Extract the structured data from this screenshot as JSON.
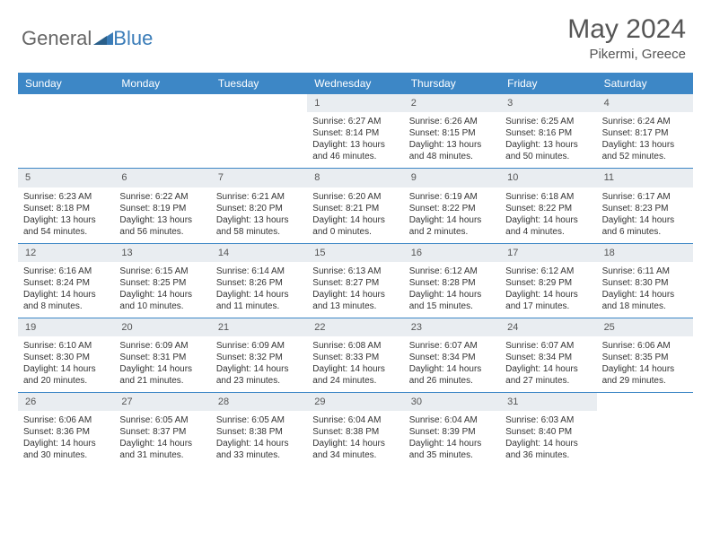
{
  "logo": {
    "part1": "General",
    "part2": "Blue"
  },
  "title": "May 2024",
  "subtitle": "Pikermi, Greece",
  "day_names": [
    "Sunday",
    "Monday",
    "Tuesday",
    "Wednesday",
    "Thursday",
    "Friday",
    "Saturday"
  ],
  "colors": {
    "header_bg": "#3d87c6",
    "header_text": "#ffffff",
    "daynum_bg": "#e9edf1",
    "week_divider": "#3d87c6",
    "logo_blue": "#3a7cb8",
    "text": "#333333"
  },
  "weeks": [
    [
      null,
      null,
      null,
      {
        "n": "1",
        "sr": "Sunrise: 6:27 AM",
        "ss": "Sunset: 8:14 PM",
        "dl": "Daylight: 13 hours and 46 minutes."
      },
      {
        "n": "2",
        "sr": "Sunrise: 6:26 AM",
        "ss": "Sunset: 8:15 PM",
        "dl": "Daylight: 13 hours and 48 minutes."
      },
      {
        "n": "3",
        "sr": "Sunrise: 6:25 AM",
        "ss": "Sunset: 8:16 PM",
        "dl": "Daylight: 13 hours and 50 minutes."
      },
      {
        "n": "4",
        "sr": "Sunrise: 6:24 AM",
        "ss": "Sunset: 8:17 PM",
        "dl": "Daylight: 13 hours and 52 minutes."
      }
    ],
    [
      {
        "n": "5",
        "sr": "Sunrise: 6:23 AM",
        "ss": "Sunset: 8:18 PM",
        "dl": "Daylight: 13 hours and 54 minutes."
      },
      {
        "n": "6",
        "sr": "Sunrise: 6:22 AM",
        "ss": "Sunset: 8:19 PM",
        "dl": "Daylight: 13 hours and 56 minutes."
      },
      {
        "n": "7",
        "sr": "Sunrise: 6:21 AM",
        "ss": "Sunset: 8:20 PM",
        "dl": "Daylight: 13 hours and 58 minutes."
      },
      {
        "n": "8",
        "sr": "Sunrise: 6:20 AM",
        "ss": "Sunset: 8:21 PM",
        "dl": "Daylight: 14 hours and 0 minutes."
      },
      {
        "n": "9",
        "sr": "Sunrise: 6:19 AM",
        "ss": "Sunset: 8:22 PM",
        "dl": "Daylight: 14 hours and 2 minutes."
      },
      {
        "n": "10",
        "sr": "Sunrise: 6:18 AM",
        "ss": "Sunset: 8:22 PM",
        "dl": "Daylight: 14 hours and 4 minutes."
      },
      {
        "n": "11",
        "sr": "Sunrise: 6:17 AM",
        "ss": "Sunset: 8:23 PM",
        "dl": "Daylight: 14 hours and 6 minutes."
      }
    ],
    [
      {
        "n": "12",
        "sr": "Sunrise: 6:16 AM",
        "ss": "Sunset: 8:24 PM",
        "dl": "Daylight: 14 hours and 8 minutes."
      },
      {
        "n": "13",
        "sr": "Sunrise: 6:15 AM",
        "ss": "Sunset: 8:25 PM",
        "dl": "Daylight: 14 hours and 10 minutes."
      },
      {
        "n": "14",
        "sr": "Sunrise: 6:14 AM",
        "ss": "Sunset: 8:26 PM",
        "dl": "Daylight: 14 hours and 11 minutes."
      },
      {
        "n": "15",
        "sr": "Sunrise: 6:13 AM",
        "ss": "Sunset: 8:27 PM",
        "dl": "Daylight: 14 hours and 13 minutes."
      },
      {
        "n": "16",
        "sr": "Sunrise: 6:12 AM",
        "ss": "Sunset: 8:28 PM",
        "dl": "Daylight: 14 hours and 15 minutes."
      },
      {
        "n": "17",
        "sr": "Sunrise: 6:12 AM",
        "ss": "Sunset: 8:29 PM",
        "dl": "Daylight: 14 hours and 17 minutes."
      },
      {
        "n": "18",
        "sr": "Sunrise: 6:11 AM",
        "ss": "Sunset: 8:30 PM",
        "dl": "Daylight: 14 hours and 18 minutes."
      }
    ],
    [
      {
        "n": "19",
        "sr": "Sunrise: 6:10 AM",
        "ss": "Sunset: 8:30 PM",
        "dl": "Daylight: 14 hours and 20 minutes."
      },
      {
        "n": "20",
        "sr": "Sunrise: 6:09 AM",
        "ss": "Sunset: 8:31 PM",
        "dl": "Daylight: 14 hours and 21 minutes."
      },
      {
        "n": "21",
        "sr": "Sunrise: 6:09 AM",
        "ss": "Sunset: 8:32 PM",
        "dl": "Daylight: 14 hours and 23 minutes."
      },
      {
        "n": "22",
        "sr": "Sunrise: 6:08 AM",
        "ss": "Sunset: 8:33 PM",
        "dl": "Daylight: 14 hours and 24 minutes."
      },
      {
        "n": "23",
        "sr": "Sunrise: 6:07 AM",
        "ss": "Sunset: 8:34 PM",
        "dl": "Daylight: 14 hours and 26 minutes."
      },
      {
        "n": "24",
        "sr": "Sunrise: 6:07 AM",
        "ss": "Sunset: 8:34 PM",
        "dl": "Daylight: 14 hours and 27 minutes."
      },
      {
        "n": "25",
        "sr": "Sunrise: 6:06 AM",
        "ss": "Sunset: 8:35 PM",
        "dl": "Daylight: 14 hours and 29 minutes."
      }
    ],
    [
      {
        "n": "26",
        "sr": "Sunrise: 6:06 AM",
        "ss": "Sunset: 8:36 PM",
        "dl": "Daylight: 14 hours and 30 minutes."
      },
      {
        "n": "27",
        "sr": "Sunrise: 6:05 AM",
        "ss": "Sunset: 8:37 PM",
        "dl": "Daylight: 14 hours and 31 minutes."
      },
      {
        "n": "28",
        "sr": "Sunrise: 6:05 AM",
        "ss": "Sunset: 8:38 PM",
        "dl": "Daylight: 14 hours and 33 minutes."
      },
      {
        "n": "29",
        "sr": "Sunrise: 6:04 AM",
        "ss": "Sunset: 8:38 PM",
        "dl": "Daylight: 14 hours and 34 minutes."
      },
      {
        "n": "30",
        "sr": "Sunrise: 6:04 AM",
        "ss": "Sunset: 8:39 PM",
        "dl": "Daylight: 14 hours and 35 minutes."
      },
      {
        "n": "31",
        "sr": "Sunrise: 6:03 AM",
        "ss": "Sunset: 8:40 PM",
        "dl": "Daylight: 14 hours and 36 minutes."
      },
      null
    ]
  ]
}
